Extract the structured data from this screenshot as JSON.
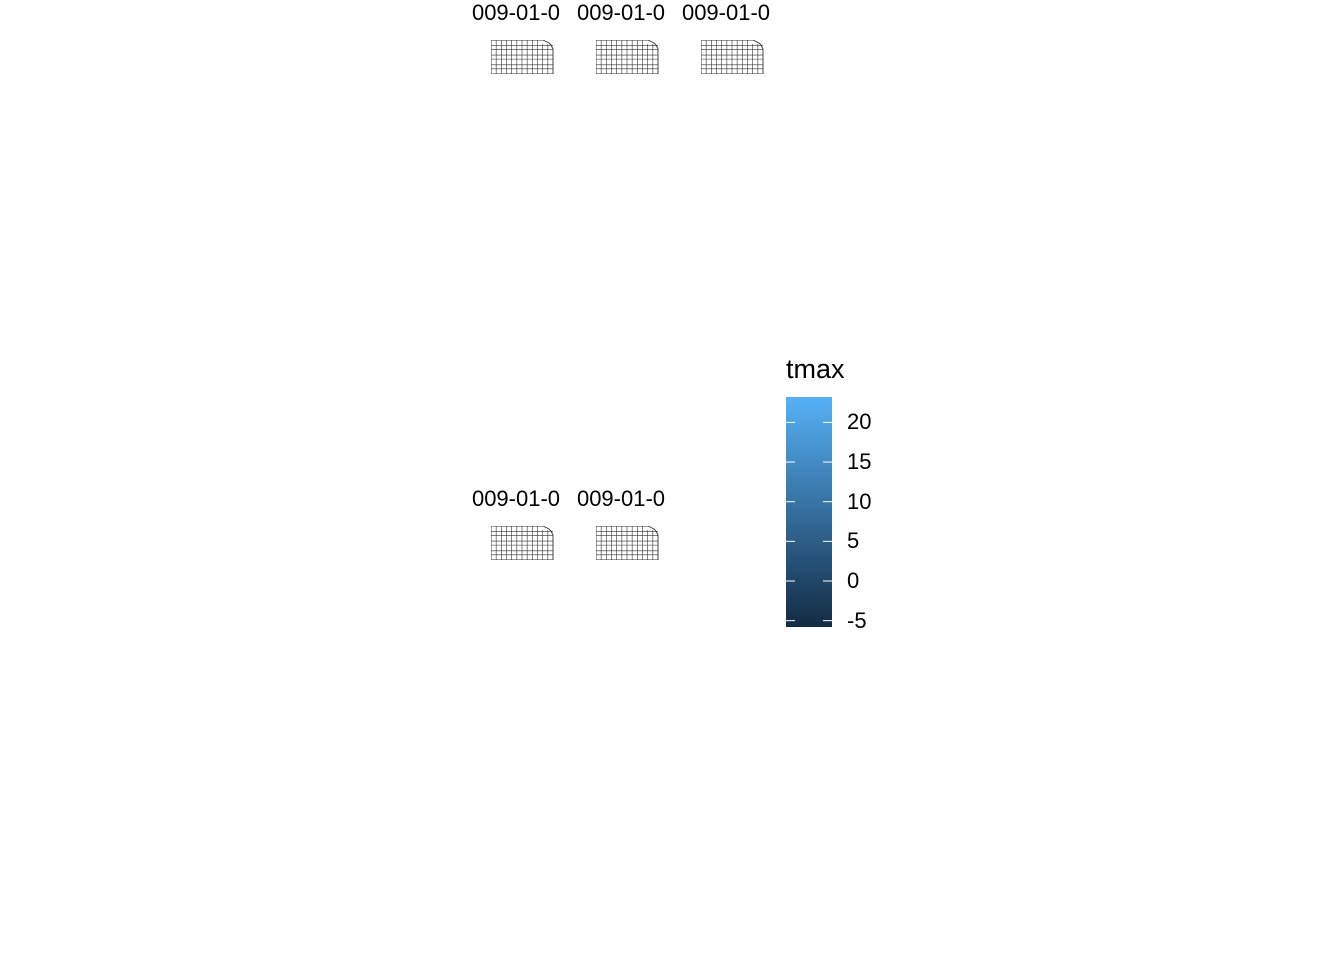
{
  "chart_data": {
    "type": "heatmap",
    "facet_titles": [
      "009-01-0",
      "009-01-0",
      "009-01-0",
      "009-01-0",
      "009-01-0"
    ],
    "legend": {
      "title": "tmax",
      "ticks": [
        20,
        15,
        10,
        5,
        0,
        -5
      ],
      "tick_labels": [
        "20",
        "15",
        "10",
        "5",
        "0",
        "-5"
      ],
      "range": [
        -5.8,
        23.2
      ],
      "low_color": "#132B43",
      "high_color": "#56B1F7"
    },
    "panel_layout": {
      "rows": 2,
      "cols": 3,
      "filled": 5
    },
    "background": "#FFFFFF",
    "outline_color": "#333333"
  }
}
